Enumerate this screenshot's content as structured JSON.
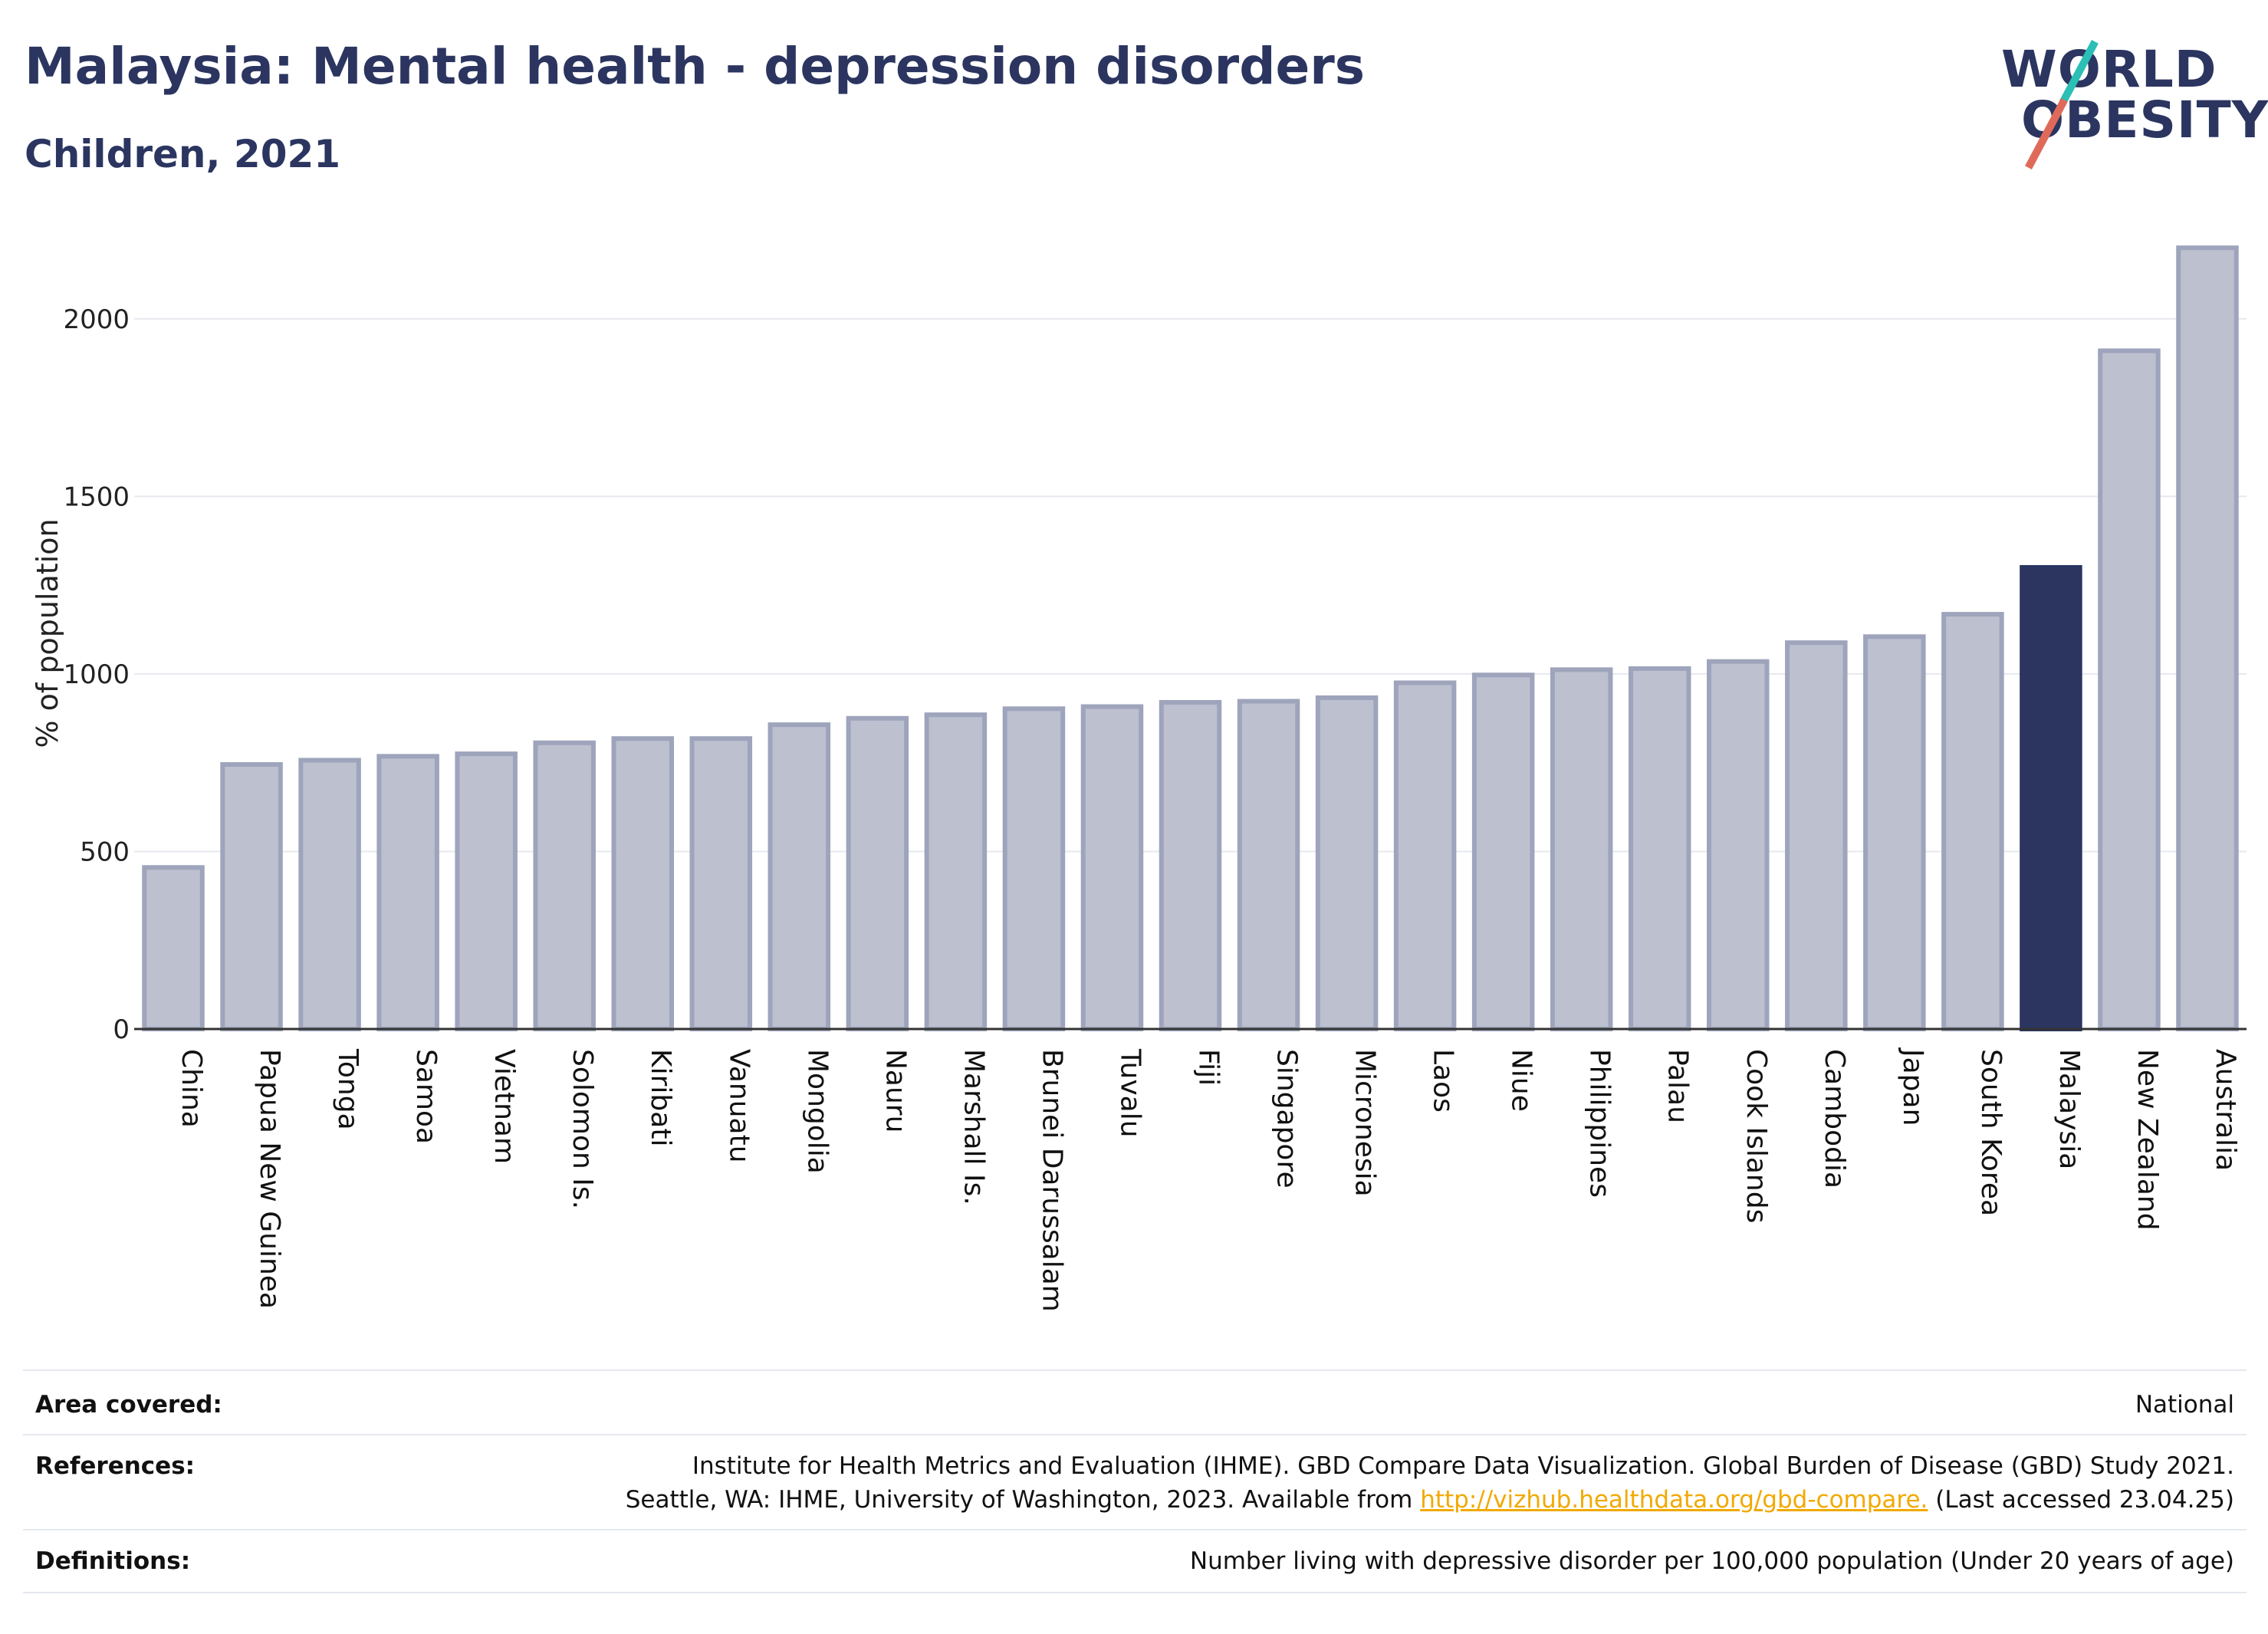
{
  "header": {
    "title": "Malaysia: Mental health - depression disorders",
    "subtitle": "Children, 2021"
  },
  "logo": {
    "line1": "WORLD",
    "line2": "OBESITY"
  },
  "colors": {
    "bar_default": "#bcc0cf",
    "bar_border": "#9ea4bb",
    "bar_highlight": "#2b3560",
    "title": "#2b3560",
    "link": "#f2a900"
  },
  "chart_data": {
    "type": "bar",
    "title": "Malaysia: Mental health - depression disorders",
    "subtitle": "Children, 2021",
    "xlabel": "",
    "ylabel": "% of population",
    "ylim": [
      0,
      2250
    ],
    "yticks": [
      0,
      500,
      1000,
      1500,
      2000
    ],
    "grid": true,
    "highlight": "Malaysia",
    "categories": [
      "China",
      "Papua New Guinea",
      "Tonga",
      "Samoa",
      "Vietnam",
      "Solomon Is.",
      "Kiribati",
      "Vanuatu",
      "Mongolia",
      "Nauru",
      "Marshall Is.",
      "Brunei Darussalam",
      "Tuvalu",
      "Fiji",
      "Singapore",
      "Micronesia",
      "Laos",
      "Niue",
      "Philippines",
      "Palau",
      "Cook Islands",
      "Cambodia",
      "Japan",
      "South Korea",
      "Malaysia",
      "New Zealand",
      "Australia"
    ],
    "values": [
      455,
      745,
      757,
      768,
      775,
      806,
      818,
      818,
      857,
      875,
      885,
      902,
      908,
      920,
      923,
      933,
      975,
      997,
      1012,
      1015,
      1035,
      1088,
      1105,
      1168,
      1300,
      1910,
      2200
    ]
  },
  "footer": {
    "area_label": "Area covered:",
    "area_value": "National",
    "references_label": "References:",
    "references_line1": "Institute for Health Metrics and Evaluation (IHME). GBD Compare Data Visualization. Global Burden of Disease (GBD) Study 2021.",
    "references_line2_pre": "Seattle, WA: IHME, University of Washington, 2023. Available from ",
    "references_link": "http://vizhub.healthdata.org/gbd-compare.",
    "references_line2_post": " (Last accessed 23.04.25)",
    "definitions_label": "Definitions:",
    "definitions_value": "Number living with depressive disorder per 100,000 population (Under 20 years of age)"
  }
}
